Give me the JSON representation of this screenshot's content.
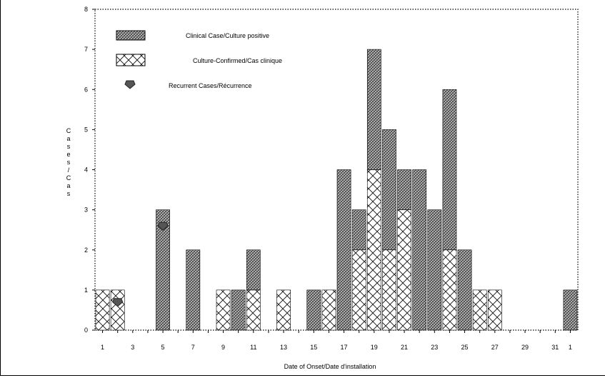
{
  "chart_data": {
    "type": "bar",
    "stacked": true,
    "xlabel": "Date of Onset/Date d'installation",
    "ylabel": "Cases/Cas",
    "ylim": [
      0,
      8
    ],
    "yticks": [
      0,
      1,
      2,
      3,
      4,
      5,
      6,
      7,
      8
    ],
    "xtick_labels": [
      "1",
      "3",
      "5",
      "7",
      "9",
      "11",
      "13",
      "15",
      "17",
      "19",
      "21",
      "23",
      "25",
      "27",
      "29",
      "31",
      "1"
    ],
    "categories": [
      "1",
      "2",
      "3",
      "4",
      "5",
      "6",
      "7",
      "8",
      "9",
      "10",
      "11",
      "12",
      "13",
      "14",
      "15",
      "16",
      "17",
      "18",
      "19",
      "20",
      "21",
      "22",
      "23",
      "24",
      "25",
      "26",
      "27",
      "28",
      "29",
      "30",
      "31",
      "1"
    ],
    "series": [
      {
        "name": "Culture-Confirmed/Cas clinique",
        "pattern": "cross-hatch",
        "values": [
          1,
          1,
          0,
          0,
          0,
          0,
          0,
          0,
          1,
          0,
          1,
          0,
          1,
          0,
          0,
          1,
          0,
          2,
          4,
          2,
          3,
          0,
          0,
          2,
          0,
          1,
          1,
          0,
          0,
          0,
          0,
          0
        ]
      },
      {
        "name": "Clinical Case/Culture positive",
        "pattern": "dense-grey",
        "values": [
          0,
          0,
          0,
          0,
          3,
          0,
          2,
          0,
          0,
          1,
          1,
          0,
          0,
          0,
          1,
          0,
          4,
          1,
          3,
          3,
          1,
          4,
          3,
          4,
          2,
          0,
          0,
          0,
          0,
          0,
          0,
          1
        ]
      }
    ],
    "recurrent_cases": {
      "name": "Recurrent Cases/Récurrence",
      "points": [
        {
          "x": "2",
          "y": 0.7
        },
        {
          "x": "5",
          "y": 2.6
        }
      ]
    },
    "grid": false,
    "legend_position": "top-left"
  },
  "legend": {
    "clinical": "Clinical Case/Culture positive",
    "confirmed": "Culture-Confirmed/Cas clinique",
    "recurrent": "Recurrent Cases/Récurrence"
  },
  "colors": {
    "dense": "#4a4a4a",
    "hatch": "#111111",
    "background": "#ffffff"
  }
}
